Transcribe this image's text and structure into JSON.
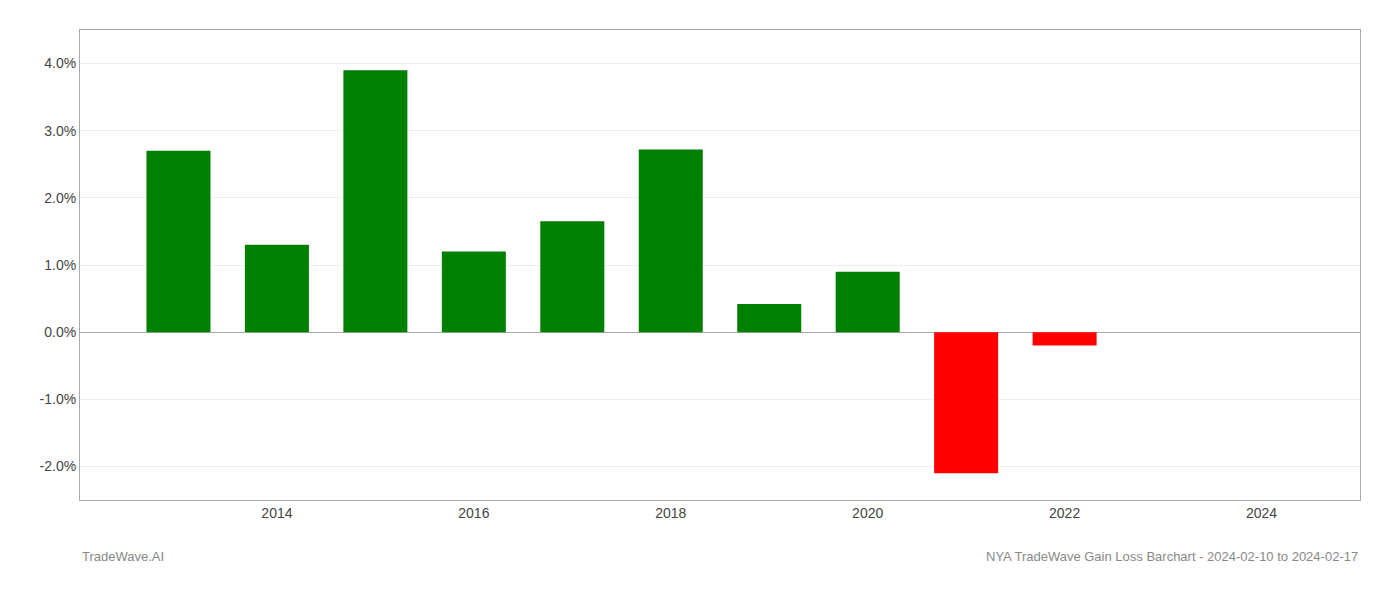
{
  "chart_data": {
    "type": "bar",
    "title": "NYA TradeWave Gain Loss Barchart - 2024-02-10 to 2024-02-17",
    "annotations": [
      "TradeWave.AI"
    ],
    "x": [
      2013,
      2014,
      2015,
      2016,
      2017,
      2018,
      2019,
      2020,
      2021,
      2022,
      2023
    ],
    "values": [
      0.027,
      0.013,
      0.039,
      0.012,
      0.0165,
      0.0272,
      0.0042,
      0.009,
      -0.021,
      -0.002,
      0.0
    ],
    "colors": [
      "#008000",
      "#008000",
      "#008000",
      "#008000",
      "#008000",
      "#008000",
      "#008000",
      "#008000",
      "#ff0000",
      "#ff0000",
      "#ff0000"
    ],
    "xlim": [
      2012.0,
      2025.0
    ],
    "xticks": [
      2014,
      2016,
      2018,
      2020,
      2022,
      2024
    ],
    "ylim": [
      -0.025,
      0.045
    ],
    "yticks": [
      {
        "value": -0.02,
        "label": "-2.0%"
      },
      {
        "value": -0.01,
        "label": "-1.0%"
      },
      {
        "value": 0.0,
        "label": "0.0%"
      },
      {
        "value": 0.01,
        "label": "1.0%"
      },
      {
        "value": 0.02,
        "label": "2.0%"
      },
      {
        "value": 0.03,
        "label": "3.0%"
      },
      {
        "value": 0.04,
        "label": "4.0%"
      }
    ],
    "grid": true
  }
}
